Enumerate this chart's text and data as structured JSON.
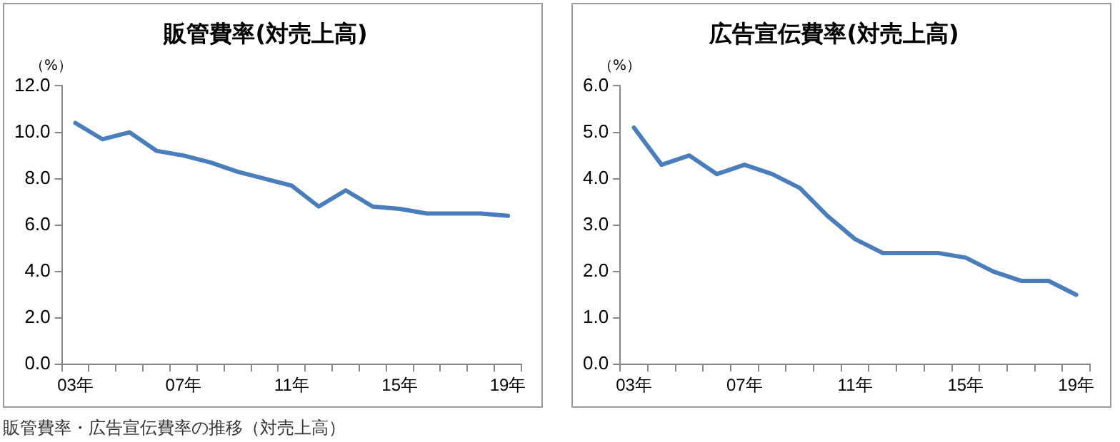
{
  "chart_data": [
    {
      "type": "line",
      "title": "販管費率(対売上高)",
      "ylabel": "（%）",
      "categories": [
        "03年",
        null,
        null,
        null,
        "07年",
        null,
        null,
        null,
        "11年",
        null,
        null,
        null,
        "15年",
        null,
        null,
        null,
        "19年"
      ],
      "series": [
        {
          "color": "#4a7ebb",
          "values": [
            10.4,
            9.7,
            10.0,
            9.2,
            9.0,
            8.7,
            8.3,
            8.0,
            7.7,
            6.8,
            7.5,
            6.8,
            6.7,
            6.5,
            6.5,
            6.5,
            6.4
          ]
        }
      ],
      "ylim": [
        0,
        12
      ],
      "yticks": [
        {
          "value": 0,
          "label": "0.0"
        },
        {
          "value": 2,
          "label": "2.0"
        },
        {
          "value": 4,
          "label": "4.0"
        },
        {
          "value": 6,
          "label": "6.0"
        },
        {
          "value": 8,
          "label": "8.0"
        },
        {
          "value": 10,
          "label": "10.0"
        },
        {
          "value": 12,
          "label": "12.0"
        }
      ],
      "grid": false,
      "legend": false,
      "marker": "none",
      "line_style": "solid",
      "annotations": [
        "販管費率・広告宣伝費率の推移（対売上高）"
      ]
    },
    {
      "type": "line",
      "title": "広告宣伝費率(対売上高)",
      "ylabel": "（%）",
      "categories": [
        "03年",
        null,
        null,
        null,
        "07年",
        null,
        null,
        null,
        "11年",
        null,
        null,
        null,
        "15年",
        null,
        null,
        null,
        "19年"
      ],
      "series": [
        {
          "color": "#4a7ebb",
          "values": [
            5.1,
            4.3,
            4.5,
            4.1,
            4.3,
            4.1,
            3.8,
            3.2,
            2.7,
            2.4,
            2.4,
            2.4,
            2.3,
            2.0,
            1.8,
            1.8,
            1.5
          ]
        }
      ],
      "ylim": [
        0,
        6
      ],
      "yticks": [
        {
          "value": 0,
          "label": "0.0"
        },
        {
          "value": 1,
          "label": "1.0"
        },
        {
          "value": 2,
          "label": "2.0"
        },
        {
          "value": 3,
          "label": "3.0"
        },
        {
          "value": 4,
          "label": "4.0"
        },
        {
          "value": 5,
          "label": "5.0"
        },
        {
          "value": 6,
          "label": "6.0"
        }
      ],
      "grid": false,
      "legend": false,
      "marker": "none",
      "line_style": "solid"
    }
  ]
}
